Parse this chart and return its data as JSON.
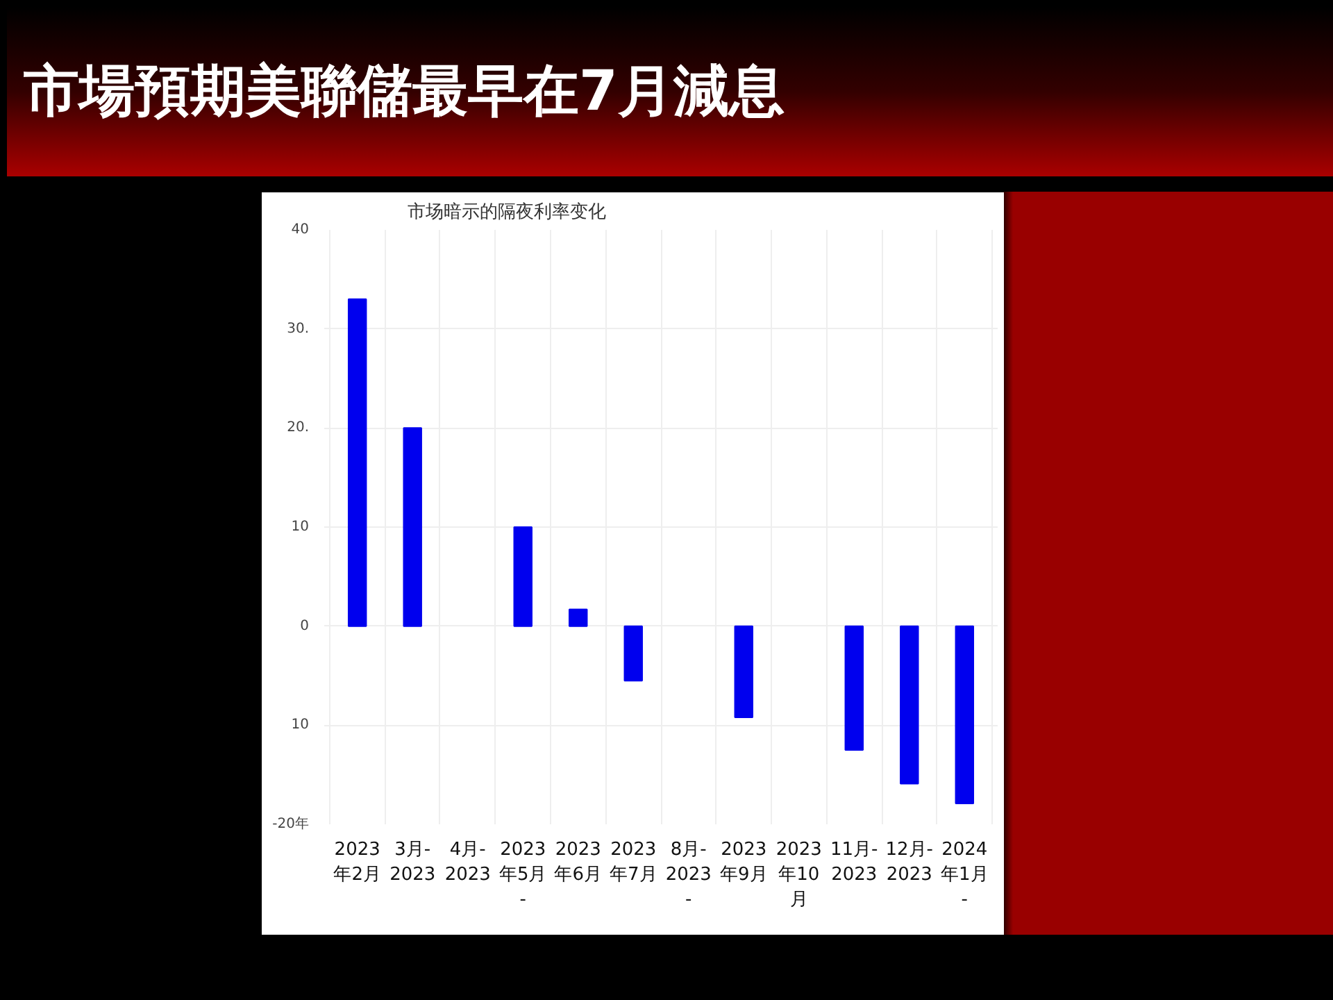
{
  "chart_data": {
    "type": "bar",
    "title": "市場預期美聯儲最早在7月減息",
    "subtitle": "市场暗示的隔夜利率变化",
    "categories": [
      "2023\n年2月",
      "3月-\n2023",
      "4月-\n2023",
      "2023\n年5月\n-",
      "2023\n年6月",
      "2023\n年7月",
      "8月-\n2023\n-",
      "2023\n年9月",
      "2023\n年10\n月",
      "11月-\n2023",
      "12月-\n2023",
      "2024\n年1月\n-"
    ],
    "series": [
      {
        "color": "#0000ee",
        "values": [
          33,
          20,
          null,
          10,
          1.7,
          -5.5,
          null,
          -9.2,
          null,
          -12.5,
          -15.9,
          -17.9
        ]
      }
    ],
    "ylim": [
      -20,
      40
    ],
    "yticks": [
      {
        "value": -20,
        "label": "-20年"
      },
      {
        "value": -10,
        "label": "10"
      },
      0,
      10,
      {
        "value": 20,
        "label": "20."
      },
      {
        "value": 30,
        "label": "30."
      },
      40
    ],
    "grid": true
  }
}
